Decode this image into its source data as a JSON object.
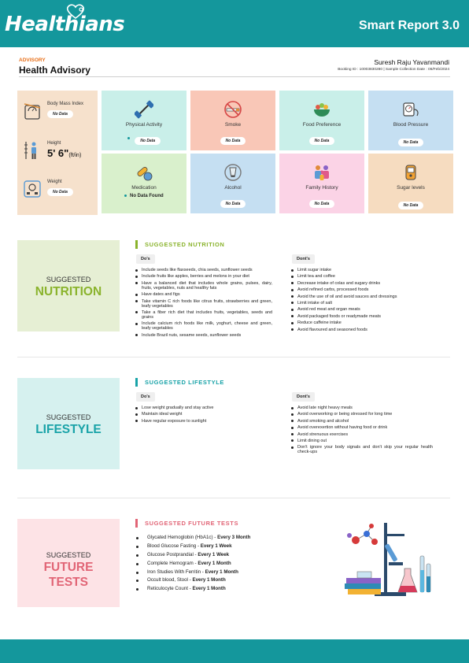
{
  "header": {
    "logo": "Healthians",
    "report_title": "Smart Report 3.0"
  },
  "advisory": {
    "kicker": "ADVISORY",
    "title": "Health Advisory",
    "patient_name": "Suresh Raju Yavanmandi",
    "booking_line": "Booking ID : 10003830280 | Sample Collection Date : 06/Feb/2024"
  },
  "vitals": {
    "bmi": {
      "label": "Body Mass Index",
      "value": "No Data"
    },
    "height": {
      "label": "Height",
      "value": "5' 6\"",
      "unit": "(ft/in)"
    },
    "weight": {
      "label": "Weight",
      "value": "No Data"
    }
  },
  "tiles": [
    {
      "label": "Physical Activity",
      "value": "No Data",
      "bg": "#c9efe9",
      "icon": "dumbbell-icon"
    },
    {
      "label": "Smoke",
      "value": "No Data",
      "bg": "#f9c7b7",
      "icon": "cigarette-icon"
    },
    {
      "label": "Food Preference",
      "value": "No Data",
      "bg": "#c9efe9",
      "icon": "food-bowl-icon"
    },
    {
      "label": "Blood Pressure",
      "value": "No Data",
      "bg": "#c5dff2",
      "icon": "bp-monitor-icon"
    },
    {
      "label": "Medication",
      "value": "No Data Found",
      "bg": "#d9f0cc",
      "icon": "pills-icon"
    },
    {
      "label": "Alcohol",
      "value": "No Data",
      "bg": "#c5dff2",
      "icon": "glass-icon"
    },
    {
      "label": "Family History",
      "value": "No Data",
      "bg": "#fbd3e6",
      "icon": "family-icon"
    },
    {
      "label": "Sugar levels",
      "value": "No Data",
      "bg": "#f6dcc0",
      "icon": "glucometer-icon"
    }
  ],
  "nutrition": {
    "small": "SUGGESTED",
    "big": "NUTRITION",
    "heading": "SUGGESTED NUTRITION",
    "dos_label": "Do's",
    "donts_label": "Dont's",
    "dos": [
      "Include seeds like flaxseeds, chia seeds, sunflower seeds",
      "Include fruits like apples, berries and melons in your diet",
      "Have a balanced diet that includes whole grains, pulses, dairy, fruits, vegetables, nuts and healthy fats",
      "Have dates and figs",
      "Take vitamin C rich foods like citrus fruits, strawberries and green, leafy vegetables",
      "Take a fiber rich diet that includes fruits, vegetables, seeds and grains",
      "Include calcium rich foods like milk, yoghurt, cheese and green, leafy vegetables",
      "Include Brazil nuts, sesame seeds, sunflower seeds"
    ],
    "donts": [
      "Limit sugar intake",
      "Limit tea and coffee",
      "Decrease intake of colas and sugary drinks",
      "Avoid refined carbs, processed foods",
      "Avoid the use of oil and avoid sauces and dressings",
      "Limit intake of salt",
      "Avoid red meat and organ meats",
      "Avoid packaged foods or readymade meats",
      "Reduce caffeine intake",
      "Avoid flavoured and seasoned foods"
    ]
  },
  "lifestyle": {
    "small": "SUGGESTED",
    "big": "LIFESTYLE",
    "heading": "SUGGESTED LIFESTYLE",
    "dos_label": "Do's",
    "donts_label": "Dont's",
    "dos": [
      "Lose weight gradually and stay active",
      "Maintain ideal weight",
      "Have regular exposure to sunlight"
    ],
    "donts": [
      "Avoid late night heavy meals",
      "Avoid overworking or being stressed for long time",
      "Avoid smoking and alcohol",
      "Avoid overexertion without having food or drink",
      "Avoid strenuous exercises",
      "Limit dining out",
      "Don't ignore your body signals and don't skip your regular health check-ups"
    ]
  },
  "future_tests": {
    "small": "SUGGESTED",
    "big1": "FUTURE",
    "big2": "TESTS",
    "heading": "SUGGESTED FUTURE TESTS",
    "items": [
      {
        "name": "Glycated Hemoglobin (HbA1c) - ",
        "freq": "Every 3 Month"
      },
      {
        "name": "Blood Glucose Fasting - ",
        "freq": "Every 1 Week"
      },
      {
        "name": "Glucose Postprandial - ",
        "freq": "Every 1 Week"
      },
      {
        "name": "Complete Hemogram - ",
        "freq": "Every 1 Month"
      },
      {
        "name": "Iron Studies With Ferritin - ",
        "freq": "Every 1 Month"
      },
      {
        "name": "Occult blood, Stool - ",
        "freq": "Every 1 Month"
      },
      {
        "name": "Reticulocyte Count - ",
        "freq": "Every 1 Month"
      }
    ]
  },
  "colors": {
    "brand": "#14979c",
    "nutrition": "#8ab32c",
    "lifestyle": "#19a3a8",
    "future_tests": "#e16576",
    "orange": "#e8701a"
  }
}
